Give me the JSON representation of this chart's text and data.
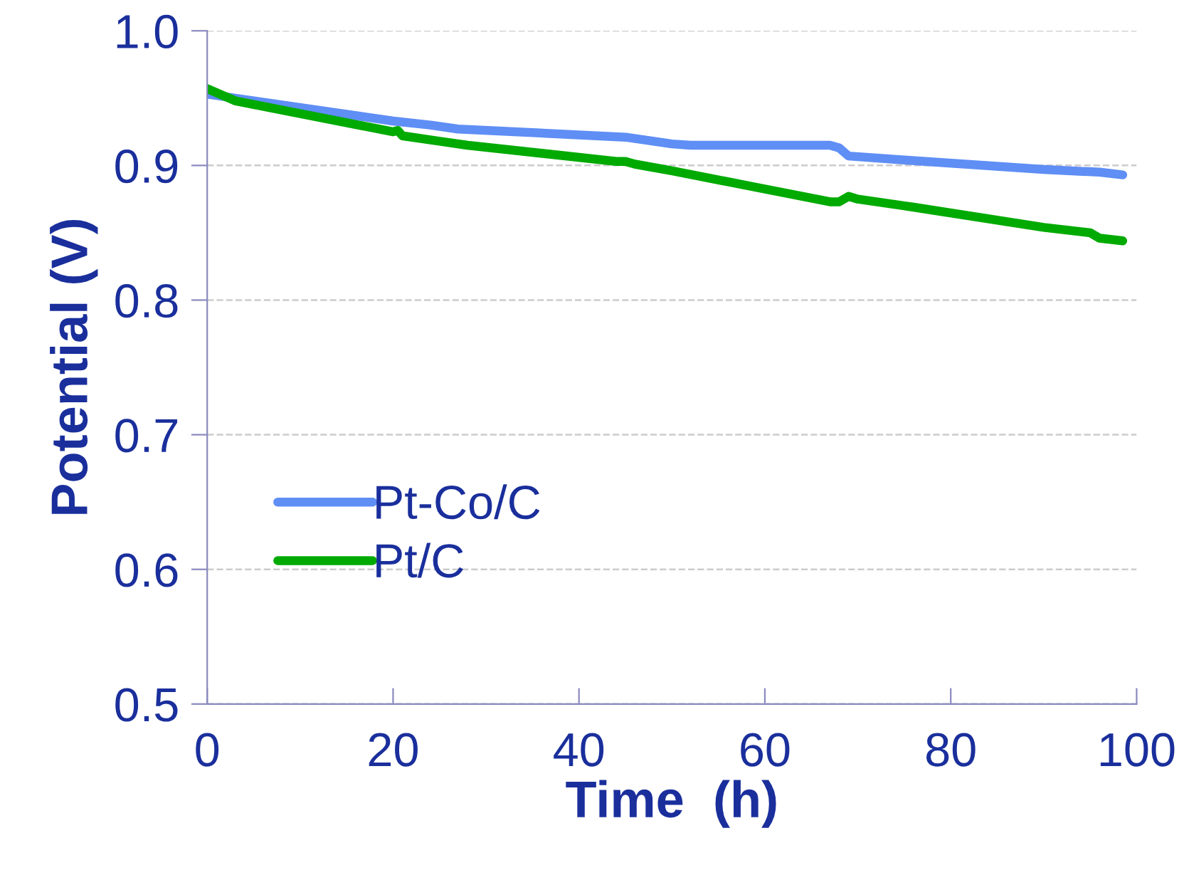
{
  "chart_data": {
    "type": "line",
    "xlabel": "Time  (h)",
    "ylabel": "Potential (V)",
    "xlim": [
      0,
      100
    ],
    "ylim": [
      0.5,
      1.0
    ],
    "xticks": [
      0,
      20,
      40,
      60,
      80,
      100
    ],
    "yticks": [
      {
        "value": 0.5,
        "label": "0.5"
      },
      {
        "value": 0.6,
        "label": "0.6"
      },
      {
        "value": 0.7,
        "label": "0.7"
      },
      {
        "value": 0.8,
        "label": "0.8"
      },
      {
        "value": 0.9,
        "label": "0.9"
      },
      {
        "value": 1.0,
        "label": "1.0"
      }
    ],
    "grid": "y",
    "legend": "left",
    "marker": "none",
    "line_style": "solid",
    "series": [
      {
        "name": "Pt-Co/C",
        "color": "#5f8ef5",
        "x": [
          0,
          3,
          20,
          24,
          27,
          45,
          50,
          52,
          67,
          68,
          69,
          75,
          90,
          96,
          98.5
        ],
        "values": [
          0.953,
          0.95,
          0.933,
          0.93,
          0.927,
          0.921,
          0.916,
          0.915,
          0.915,
          0.913,
          0.907,
          0.904,
          0.897,
          0.895,
          0.893
        ]
      },
      {
        "name": "Pt/C",
        "color": "#00aa00",
        "x": [
          0,
          3,
          20,
          20.5,
          21,
          25,
          28,
          44,
          45,
          46,
          50,
          67,
          68,
          69,
          70,
          76,
          90,
          95,
          96,
          98.5
        ],
        "values": [
          0.957,
          0.948,
          0.925,
          0.926,
          0.922,
          0.918,
          0.915,
          0.903,
          0.903,
          0.901,
          0.896,
          0.873,
          0.873,
          0.877,
          0.875,
          0.869,
          0.854,
          0.85,
          0.846,
          0.844
        ]
      }
    ]
  }
}
